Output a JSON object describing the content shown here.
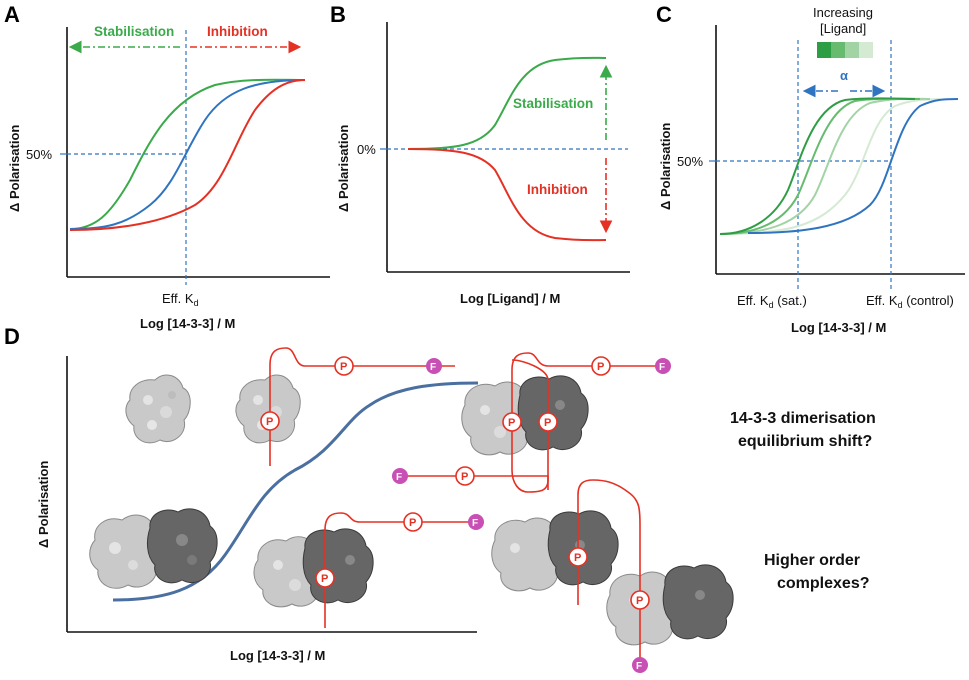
{
  "panels": {
    "A": {
      "letter": "A",
      "stabilisation": "Stabilisation",
      "inhibition": "Inhibition",
      "y_tick": "50%",
      "x_marker": "Eff. K",
      "x_marker_sub": "d",
      "xlabel": "Log [14-3-3] / M",
      "ylabel": "Δ Polarisation"
    },
    "B": {
      "letter": "B",
      "y_tick": "0%",
      "stabilisation": "Stabilisation",
      "inhibition": "Inhibition",
      "xlabel": "Log [Ligand] / M",
      "ylabel": "Δ Polarisation"
    },
    "C": {
      "letter": "C",
      "legend_line1": "Increasing",
      "legend_line2": "[Ligand]",
      "alpha": "α",
      "y_tick": "50%",
      "marker1": "Eff. K",
      "marker1_sub": "d",
      "marker1_suffix": " (sat.)",
      "marker2": "Eff. K",
      "marker2_sub": "d",
      "marker2_suffix": " (control)",
      "xlabel": "Log [14-3-3] / M",
      "ylabel": "Δ Polarisation"
    },
    "D": {
      "letter": "D",
      "xlabel": "Log [14-3-3] / M",
      "ylabel": "Δ Polarisation",
      "question1_line1": "14-3-3 dimerisation",
      "question1_line2": "equilibrium shift?",
      "question2_line1": "Higher order",
      "question2_line2": "complexes?",
      "phospho_label": "P",
      "fluor_label": "F"
    }
  },
  "colors": {
    "green": "#3aaa4a",
    "red": "#e53124",
    "blue": "#2f74c0",
    "steel_blue": "#4a6fa0",
    "magenta": "#c84fb4"
  }
}
